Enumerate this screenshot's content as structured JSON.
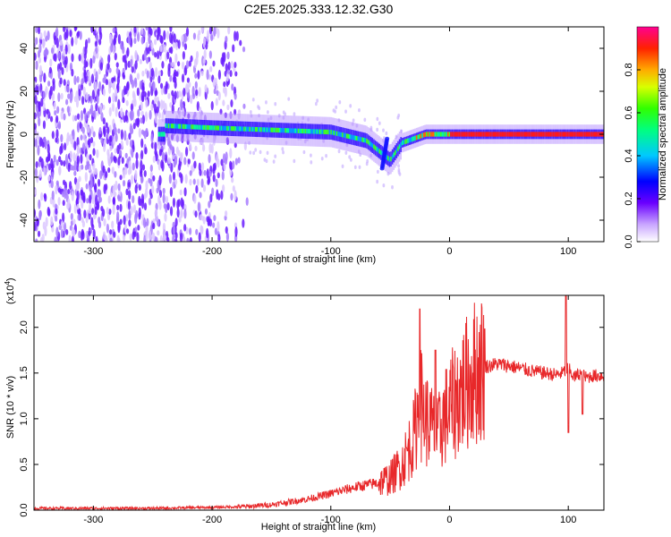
{
  "figure": {
    "title": "C2E5.2025.333.12.32.G30"
  },
  "chart_data": [
    {
      "type": "heatmap",
      "name": "spectrogram",
      "xlabel": "Height of straight line (km)",
      "ylabel": "Frequency (Hz)",
      "xlim": [
        -350,
        130
      ],
      "ylim": [
        -50,
        50
      ],
      "xticks": [
        -300,
        -200,
        -100,
        0,
        100
      ],
      "yticks": [
        -40,
        -20,
        0,
        20,
        40
      ],
      "colorbar": {
        "label": "Normalized spectral amplitude",
        "range": [
          0,
          1
        ],
        "ticks": [
          0.0,
          0.2,
          0.4,
          0.6,
          0.8
        ]
      },
      "ridge": {
        "description_points": [
          {
            "x": -240,
            "y": 4
          },
          {
            "x": -200,
            "y": 3
          },
          {
            "x": -150,
            "y": 2
          },
          {
            "x": -100,
            "y": 1
          },
          {
            "x": -70,
            "y": -3
          },
          {
            "x": -50,
            "y": -12
          },
          {
            "x": -40,
            "y": -4
          },
          {
            "x": -20,
            "y": 0
          },
          {
            "x": 0,
            "y": 0
          },
          {
            "x": 130,
            "y": 0
          }
        ]
      }
    },
    {
      "type": "line",
      "name": "snr",
      "title": "",
      "xlabel": "Height of straight line (km)",
      "ylabel": "SNR (10 * v/v)",
      "multiplier": "(x10",
      "multiplier_exp": "4",
      "multiplier_close": ")",
      "xlim": [
        -350,
        130
      ],
      "ylim": [
        0,
        2.35
      ],
      "xticks": [
        -300,
        -200,
        -100,
        0,
        100
      ],
      "yticks": [
        0.0,
        0.5,
        1.0,
        1.5,
        2.0
      ],
      "color": "#e8282a",
      "series": [
        {
          "name": "SNR",
          "x": [
            -350,
            -300,
            -250,
            -200,
            -170,
            -150,
            -120,
            -100,
            -80,
            -60,
            -50,
            -40,
            -30,
            -25,
            -20,
            -15,
            -10,
            -5,
            0,
            10,
            20,
            30,
            40,
            50,
            60,
            70,
            80,
            90,
            95,
            100,
            105,
            110,
            115,
            120,
            130
          ],
          "values": [
            0.02,
            0.02,
            0.02,
            0.03,
            0.04,
            0.06,
            0.12,
            0.18,
            0.25,
            0.3,
            0.35,
            0.5,
            0.8,
            1.2,
            1.0,
            0.9,
            0.8,
            1.0,
            1.1,
            1.3,
            1.5,
            1.57,
            1.6,
            1.58,
            1.55,
            1.52,
            1.5,
            1.48,
            1.5,
            1.55,
            1.45,
            1.5,
            1.45,
            1.47,
            1.47
          ]
        }
      ],
      "peaks": [
        {
          "x": -25,
          "y": 2.2
        },
        {
          "x": -12,
          "y": 1.75
        },
        {
          "x": 98,
          "y": 2.35
        },
        {
          "x": 100,
          "y": 0.85
        },
        {
          "x": 112,
          "y": 1.05
        }
      ]
    }
  ]
}
